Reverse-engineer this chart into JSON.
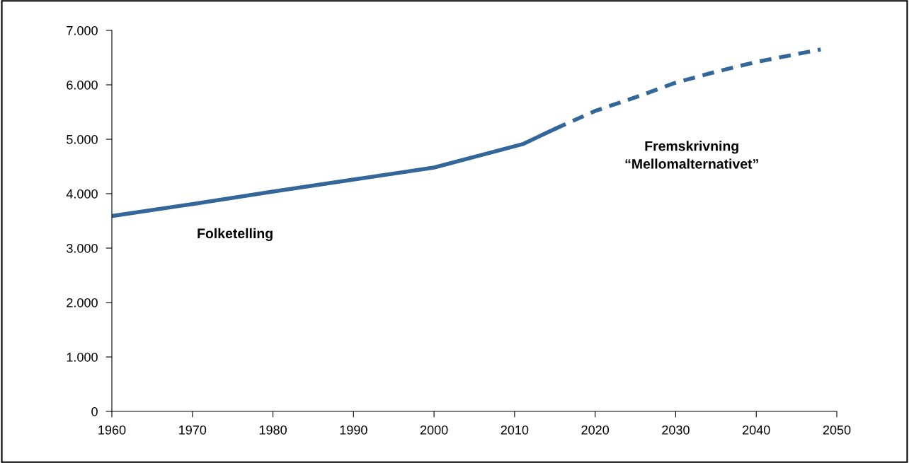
{
  "chart_data": {
    "type": "line",
    "series": [
      {
        "color": "#336699",
        "line_style": "solid",
        "x": [
          1960,
          1970,
          1980,
          1990,
          2000,
          2011,
          2015
        ],
        "values": [
          3590,
          3810,
          4040,
          4260,
          4480,
          4910,
          5190
        ]
      },
      {
        "color": "#336699",
        "line_style": "dashed",
        "x": [
          2015,
          2020,
          2025,
          2030,
          2035,
          2040,
          2048
        ],
        "values": [
          5190,
          5520,
          5770,
          6040,
          6240,
          6420,
          6650
        ]
      }
    ],
    "xlim": [
      1960,
      2050
    ],
    "xticks": [
      1960,
      1970,
      1980,
      1990,
      2000,
      2010,
      2020,
      2030,
      2040,
      2050
    ],
    "ylim": [
      0,
      7000
    ],
    "yticks": [
      {
        "value": 0,
        "label": "0"
      },
      {
        "value": 1000,
        "label": "1.000"
      },
      {
        "value": 2000,
        "label": "2.000"
      },
      {
        "value": 3000,
        "label": "3.000"
      },
      {
        "value": 4000,
        "label": "4.000"
      },
      {
        "value": 5000,
        "label": "5.000"
      },
      {
        "value": 6000,
        "label": "6.000"
      },
      {
        "value": 7000,
        "label": "7.000"
      }
    ],
    "grid": false,
    "legend": false,
    "marker": "none",
    "annotations": [
      "Folketelling",
      "Fremskrivning\n“Mellomalternativet”"
    ]
  }
}
